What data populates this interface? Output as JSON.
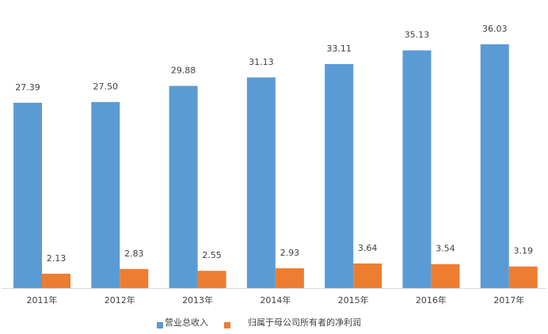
{
  "chart_data": {
    "type": "bar",
    "categories": [
      "2011年",
      "2012年",
      "2013年",
      "2014年",
      "2015年",
      "2016年",
      "2017年"
    ],
    "series": [
      {
        "name": "营业总收入",
        "color": "#5b9bd5",
        "values": [
          27.39,
          27.5,
          29.88,
          31.13,
          33.11,
          35.13,
          36.03
        ],
        "labels": [
          "27.39",
          "27.50",
          "29.88",
          "31.13",
          "33.11",
          "35.13",
          "36.03"
        ]
      },
      {
        "name": "归属于母公司所有者的净利润",
        "color": "#ed7d31",
        "values": [
          2.13,
          2.83,
          2.55,
          2.93,
          3.64,
          3.54,
          3.19
        ],
        "labels": [
          "2.13",
          "2.83",
          "2.55",
          "2.93",
          "3.64",
          "3.54",
          "3.19"
        ]
      }
    ],
    "ylim": [
      0,
      40
    ],
    "grid": false,
    "legend": "bottom-center",
    "axis_color": "#d9d9d9"
  }
}
